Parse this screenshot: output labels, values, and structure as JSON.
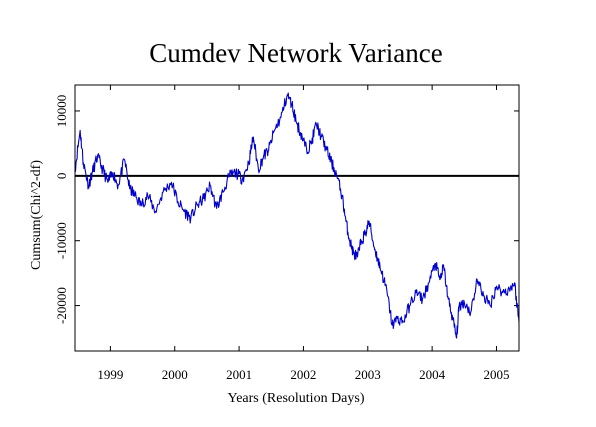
{
  "chart_data": {
    "type": "line",
    "title": "Cumdev Network Variance",
    "xlabel": "Years (Resolution Days)",
    "ylabel": "Cumsum(Chi^2-df)",
    "xlim": [
      1998.45,
      2005.35
    ],
    "ylim": [
      -27000,
      14000
    ],
    "x_ticks": [
      1999,
      2000,
      2001,
      2002,
      2003,
      2004,
      2005
    ],
    "x_tick_labels": [
      "1999",
      "2000",
      "2001",
      "2002",
      "2003",
      "2004",
      "2005"
    ],
    "y_ticks": [
      -20000,
      -10000,
      0,
      10000
    ],
    "y_tick_labels": [
      "-20000",
      "-10000",
      "0",
      "10000"
    ],
    "reference_line": 0,
    "grid": false,
    "colors": {
      "series": "#0000cc",
      "axes": "#000000"
    },
    "series": [
      {
        "x": [
          1998.45,
          1998.53,
          1998.58,
          1998.66,
          1998.72,
          1998.8,
          1998.88,
          1998.96,
          1999.04,
          1999.12,
          1999.22,
          1999.3,
          1999.38,
          1999.48,
          1999.58,
          1999.7,
          1999.82,
          1999.95,
          2000.05,
          2000.15,
          2000.25,
          2000.35,
          2000.45,
          2000.55,
          2000.65,
          2000.75,
          2000.85,
          2000.95,
          2001.05,
          2001.15,
          2001.22,
          2001.3,
          2001.38,
          2001.46,
          2001.55,
          2001.65,
          2001.75,
          2001.82,
          2001.9,
          2001.98,
          2002.05,
          2002.12,
          2002.2,
          2002.28,
          2002.36,
          2002.44,
          2002.52,
          2002.6,
          2002.66,
          2002.72,
          2002.78,
          2002.84,
          2002.9,
          2002.96,
          2003.02,
          2003.1,
          2003.16,
          2003.22,
          2003.3,
          2003.38,
          2003.46,
          2003.55,
          2003.65,
          2003.75,
          2003.85,
          2003.95,
          2004.05,
          2004.12,
          2004.18,
          2004.25,
          2004.32,
          2004.38,
          2004.42,
          2004.5,
          2004.6,
          2004.7,
          2004.8,
          2004.9,
          2005.0,
          2005.1,
          2005.2,
          2005.28,
          2005.35
        ],
        "y": [
          1000,
          7000,
          2000,
          -1500,
          500,
          3000,
          1000,
          -1000,
          500,
          -1500,
          2500,
          -2000,
          -3000,
          -4500,
          -3000,
          -5500,
          -2500,
          -1000,
          -4000,
          -5500,
          -6500,
          -4500,
          -3500,
          -1500,
          -5000,
          -2500,
          0,
          500,
          -500,
          2000,
          6000,
          1000,
          3000,
          4000,
          7000,
          9000,
          12500,
          11000,
          8000,
          6000,
          4000,
          5000,
          8000,
          6000,
          4000,
          2000,
          0,
          -3000,
          -7000,
          -10000,
          -12000,
          -12500,
          -10000,
          -9000,
          -7000,
          -11000,
          -13000,
          -15000,
          -18000,
          -23000,
          -22000,
          -22500,
          -20000,
          -18000,
          -19000,
          -16500,
          -13500,
          -16000,
          -14000,
          -19000,
          -22000,
          -25000,
          -20000,
          -19500,
          -21000,
          -16000,
          -18500,
          -20000,
          -17000,
          -18000,
          -17500,
          -16500,
          -22500
        ]
      }
    ]
  }
}
